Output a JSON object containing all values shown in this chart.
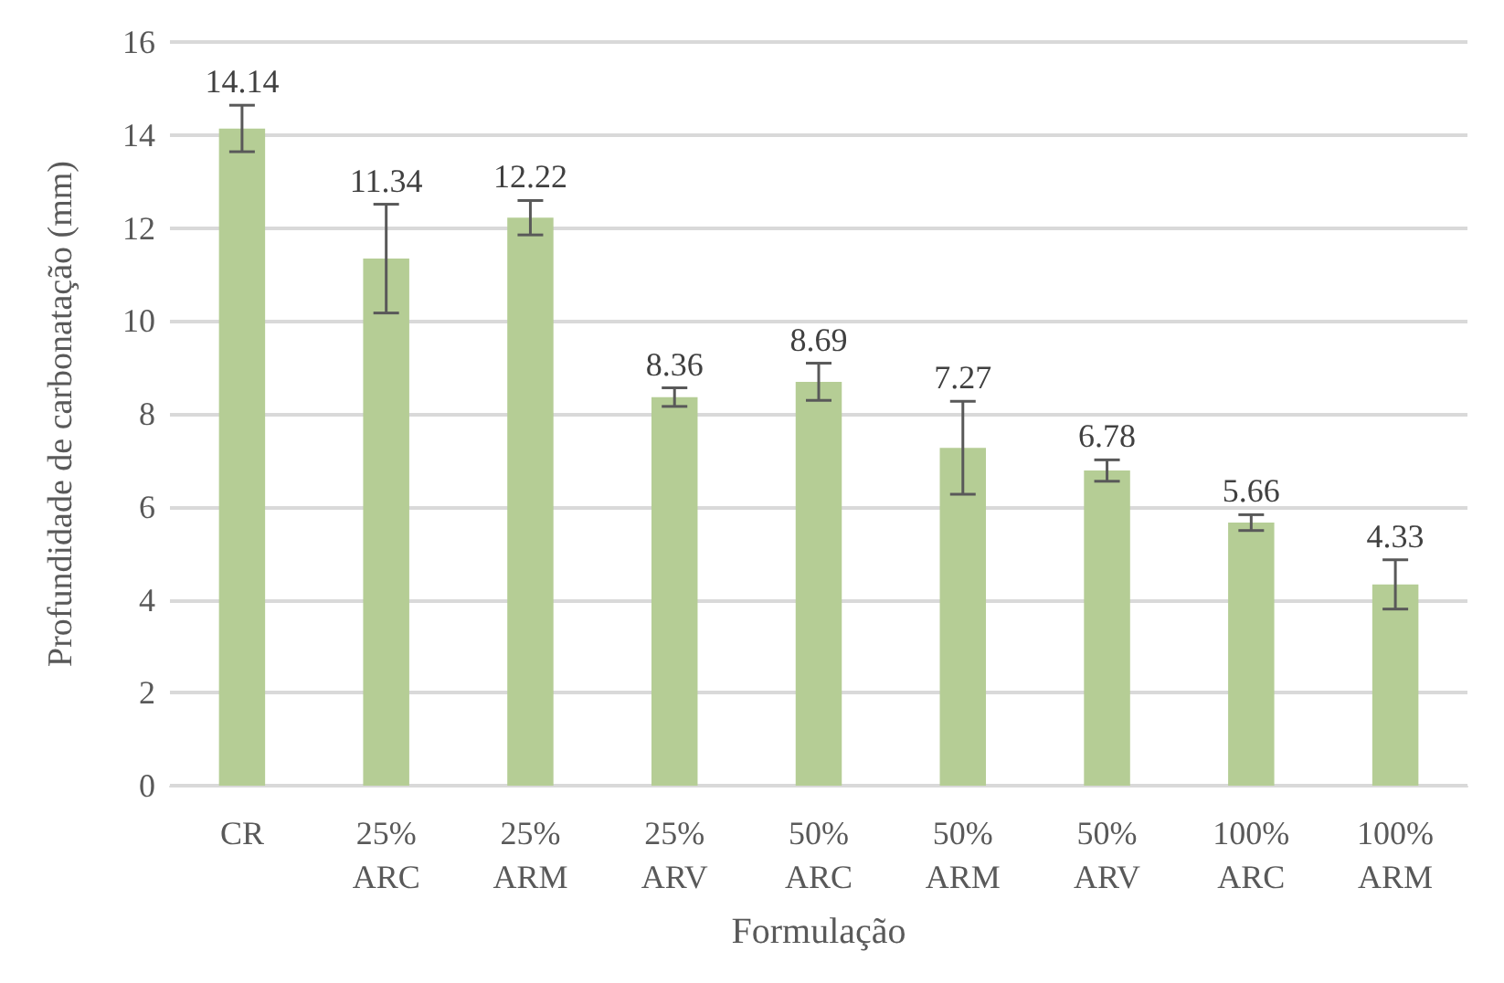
{
  "chart_data": {
    "type": "bar",
    "xlabel": "Formulação",
    "ylabel": "Profundidade de carbonatação (mm)",
    "categories": [
      "CR",
      "25%\nARC",
      "25%\nARM",
      "25%\nARV",
      "50%\nARC",
      "50%\nARM",
      "50%\nARV",
      "100%\nARC",
      "100%\nARM"
    ],
    "values": [
      14.14,
      11.34,
      12.22,
      8.36,
      8.69,
      7.27,
      6.78,
      5.66,
      4.33
    ],
    "errors": [
      0.5,
      1.17,
      0.37,
      0.2,
      0.4,
      1.0,
      0.23,
      0.17,
      0.53
    ],
    "color": "#b5cd95",
    "ylim": [
      0,
      16
    ],
    "yticks": [
      0,
      2,
      4,
      6,
      8,
      10,
      12,
      14,
      16
    ],
    "grid": "y",
    "data_labels": true
  }
}
